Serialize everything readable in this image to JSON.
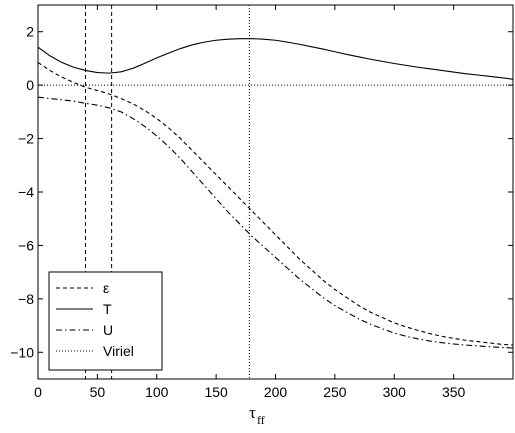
{
  "chart_data": {
    "type": "line",
    "title": "",
    "xlabel": "τ",
    "xlabel_subscript": "ff",
    "ylabel": "",
    "xlim": [
      0,
      400
    ],
    "ylim": [
      -11,
      3
    ],
    "xticks": [
      "0",
      "50",
      "100",
      "150",
      "200",
      "250",
      "300",
      "350"
    ],
    "yticks": [
      "2",
      "0",
      "−2",
      "−4",
      "−6",
      "−8",
      "−10"
    ],
    "grid": false,
    "legend_position": "bottom-left",
    "vlines": [
      {
        "x": 40,
        "style": "dashed"
      },
      {
        "x": 62,
        "style": "dashed"
      },
      {
        "x": 178,
        "style": "dotted"
      }
    ],
    "series": [
      {
        "name": "ε",
        "style": "dashed",
        "x": [
          0,
          10,
          20,
          30,
          40,
          50,
          60,
          70,
          80,
          90,
          100,
          110,
          120,
          130,
          140,
          150,
          160,
          170,
          180,
          190,
          200,
          210,
          220,
          230,
          240,
          250,
          260,
          270,
          280,
          290,
          300,
          310,
          320,
          330,
          340,
          350,
          360,
          370,
          380,
          390,
          400
        ],
        "y": [
          0.85,
          0.55,
          0.3,
          0.1,
          -0.08,
          -0.2,
          -0.33,
          -0.5,
          -0.7,
          -0.95,
          -1.25,
          -1.6,
          -2.0,
          -2.45,
          -2.9,
          -3.35,
          -3.8,
          -4.25,
          -4.7,
          -5.15,
          -5.6,
          -6.05,
          -6.5,
          -6.9,
          -7.3,
          -7.65,
          -7.95,
          -8.25,
          -8.5,
          -8.7,
          -8.9,
          -9.05,
          -9.18,
          -9.3,
          -9.4,
          -9.48,
          -9.55,
          -9.6,
          -9.65,
          -9.7,
          -9.73
        ]
      },
      {
        "name": "T",
        "style": "solid",
        "x": [
          0,
          10,
          20,
          30,
          40,
          50,
          60,
          70,
          80,
          90,
          100,
          110,
          120,
          130,
          140,
          150,
          160,
          170,
          180,
          190,
          200,
          210,
          220,
          230,
          240,
          250,
          260,
          270,
          280,
          290,
          300,
          310,
          320,
          330,
          340,
          350,
          360,
          370,
          380,
          390,
          400
        ],
        "y": [
          1.42,
          1.1,
          0.85,
          0.67,
          0.55,
          0.47,
          0.45,
          0.5,
          0.63,
          0.82,
          1.02,
          1.2,
          1.37,
          1.51,
          1.61,
          1.68,
          1.72,
          1.74,
          1.74,
          1.72,
          1.68,
          1.61,
          1.53,
          1.44,
          1.35,
          1.25,
          1.15,
          1.06,
          0.97,
          0.89,
          0.81,
          0.74,
          0.67,
          0.61,
          0.55,
          0.49,
          0.43,
          0.38,
          0.33,
          0.28,
          0.22
        ]
      },
      {
        "name": "U",
        "style": "dashdot",
        "x": [
          0,
          10,
          20,
          30,
          40,
          50,
          60,
          70,
          80,
          90,
          100,
          110,
          120,
          130,
          140,
          150,
          160,
          170,
          180,
          190,
          200,
          210,
          220,
          230,
          240,
          250,
          260,
          270,
          280,
          290,
          300,
          310,
          320,
          330,
          340,
          350,
          360,
          370,
          380,
          390,
          400
        ],
        "y": [
          -0.45,
          -0.5,
          -0.55,
          -0.6,
          -0.68,
          -0.75,
          -0.85,
          -1.0,
          -1.25,
          -1.55,
          -1.9,
          -2.3,
          -2.75,
          -3.25,
          -3.75,
          -4.25,
          -4.75,
          -5.2,
          -5.65,
          -6.05,
          -6.45,
          -6.85,
          -7.25,
          -7.6,
          -7.95,
          -8.25,
          -8.5,
          -8.75,
          -8.95,
          -9.12,
          -9.28,
          -9.4,
          -9.5,
          -9.58,
          -9.64,
          -9.69,
          -9.73,
          -9.76,
          -9.79,
          -9.82,
          -9.84
        ]
      },
      {
        "name": "Viriel",
        "style": "dotted",
        "x": [
          0,
          50,
          100,
          150,
          200,
          250,
          300,
          350,
          400
        ],
        "y": [
          0.0,
          0.0,
          0.0,
          0.0,
          0.0,
          0.0,
          0.0,
          0.0,
          0.0
        ]
      }
    ]
  }
}
